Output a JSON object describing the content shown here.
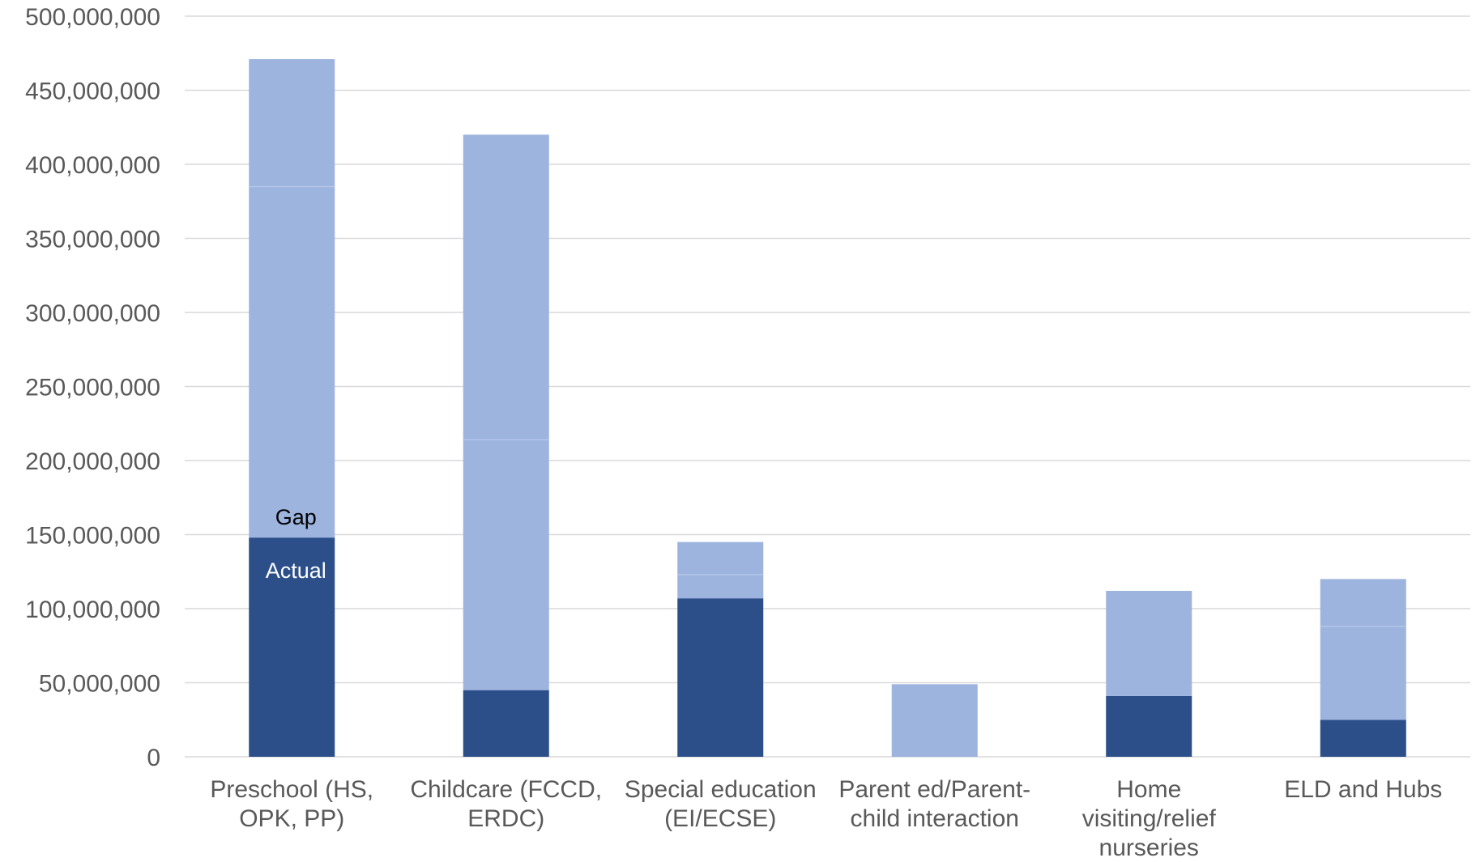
{
  "chart_data": {
    "type": "bar",
    "stacked": true,
    "title": "",
    "xlabel": "",
    "ylabel": "",
    "ylim": [
      0,
      500000000
    ],
    "yticks": [
      0,
      50000000,
      100000000,
      150000000,
      200000000,
      250000000,
      300000000,
      350000000,
      400000000,
      450000000,
      500000000
    ],
    "ytick_labels": [
      "0",
      "50,000,000",
      "100,000,000",
      "150,000,000",
      "200,000,000",
      "250,000,000",
      "300,000,000",
      "350,000,000",
      "400,000,000",
      "450,000,000",
      "500,000,000"
    ],
    "grid": true,
    "categories": [
      [
        "Preschool (HS,",
        "OPK, PP)"
      ],
      [
        "Childcare (FCCD,",
        "ERDC)"
      ],
      [
        "Special education",
        "(EI/ECSE)"
      ],
      [
        "Parent ed/Parent-",
        "child interaction"
      ],
      [
        "Home",
        "visiting/relief",
        "nurseries"
      ],
      [
        "ELD and Hubs"
      ]
    ],
    "series": [
      {
        "name": "Actual",
        "color": "#2c4f8a",
        "values": [
          148000000,
          45000000,
          107000000,
          0,
          41000000,
          25000000
        ]
      },
      {
        "name": "Gap",
        "color": "#9db4df",
        "values": [
          323000000,
          375000000,
          38000000,
          49000000,
          71000000,
          95000000
        ]
      }
    ],
    "segment_boundaries": [
      [
        385000000
      ],
      [
        214000000
      ],
      [
        123000000
      ],
      [],
      [],
      [
        88000000
      ]
    ],
    "annotations": [
      {
        "text": "Gap",
        "category_index": 0,
        "color": "#000000"
      },
      {
        "text": "Actual",
        "category_index": 0,
        "color": "#ffffff"
      }
    ],
    "colors": {
      "grid": "#d9d9d9",
      "axis_text": "#595959",
      "divider": "#b4c6e8"
    }
  }
}
